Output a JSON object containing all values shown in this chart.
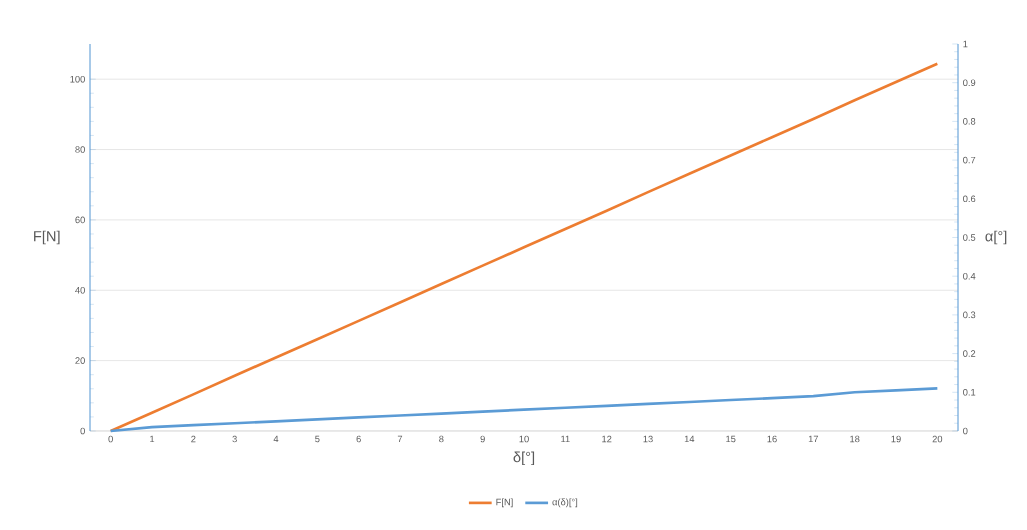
{
  "chart_data": {
    "type": "line",
    "xlabel": "δ[°]",
    "ylabel": "F[N]",
    "y2label": "α[°]",
    "categories": [
      "0",
      "1",
      "2",
      "3",
      "4",
      "5",
      "6",
      "7",
      "8",
      "9",
      "10",
      "11",
      "12",
      "13",
      "14",
      "15",
      "16",
      "17",
      "18",
      "19",
      "20"
    ],
    "series": [
      {
        "name": "F[N]",
        "color": "#ed7d31",
        "values": [
          0,
          5.2,
          10.4,
          15.7,
          20.9,
          26.1,
          31.3,
          36.5,
          41.8,
          47,
          52.2,
          57.4,
          62.6,
          67.9,
          73.1,
          78.3,
          83.5,
          88.7,
          94,
          99.2,
          104.4
        ]
      },
      {
        "name": "α(δ)[°]",
        "color": "#5b9bd5",
        "axis": "y2",
        "values": [
          0,
          0.01,
          0.015,
          0.02,
          0.025,
          0.03,
          0.035,
          0.04,
          0.045,
          0.05,
          0.055,
          0.06,
          0.065,
          0.07,
          0.075,
          0.08,
          0.085,
          0.09,
          0.1,
          0.105,
          0.11
        ]
      }
    ],
    "ylim": [
      0,
      110
    ],
    "yticks": [
      0,
      20,
      40,
      60,
      80,
      100
    ],
    "y2lim": [
      0,
      1
    ],
    "y2ticks": [
      0,
      0.1,
      0.2,
      0.3,
      0.4,
      0.5,
      0.6,
      0.7,
      0.8,
      0.9,
      1
    ],
    "grid": "y",
    "legend": "bottom",
    "marker": "none",
    "line_style": "solid"
  }
}
